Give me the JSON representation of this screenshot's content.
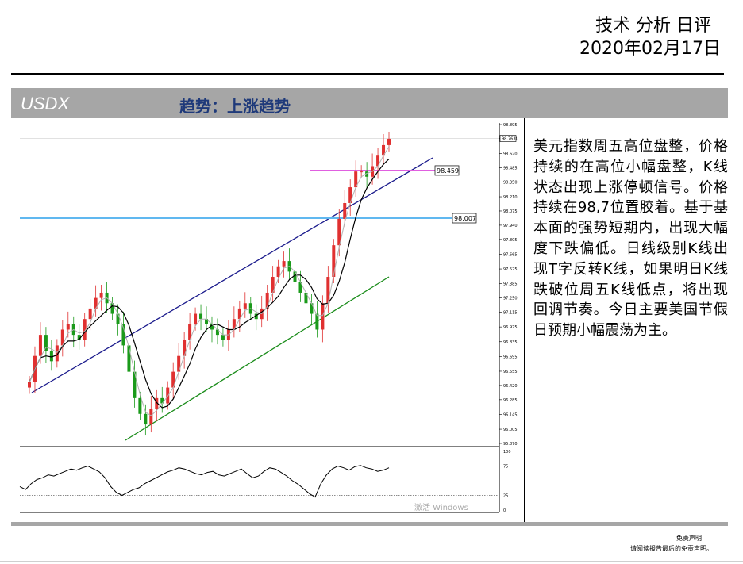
{
  "header": {
    "title": "技术 分析 日评",
    "date": "2020年02月17日"
  },
  "band": {
    "ticker": "USDX",
    "trend": "趋势：上涨趋势"
  },
  "commentary": "美元指数周五高位盘整，价格持续的在高位小幅盘整，K线状态出现上涨停顿信号。价格持续在98,7位置胶着。基于基本面的强势短期内，出现大幅度下跌偏低。日线级别K线出现T字反转K线，如果明日K线跌破位周五K线低点，将出现回调节奏。今日主要美国节假日预期小幅震荡为主。",
  "disclaimer": {
    "line1": "免责声明",
    "line2": "请阅读报告最后的免责声明。"
  },
  "watermark": "激活 Windows",
  "chart_data": {
    "type": "line",
    "title": "",
    "price_axis_ticks": [
      "98.895",
      "98.763",
      "98.620",
      "98.485",
      "98.350",
      "98.210",
      "98.075",
      "97.940",
      "97.805",
      "97.665",
      "97.525",
      "97.385",
      "97.250",
      "97.115",
      "96.975",
      "96.835",
      "96.695",
      "96.555",
      "96.420",
      "96.285",
      "96.145",
      "96.005",
      "95.870"
    ],
    "ylim": [
      95.87,
      98.895
    ],
    "last_price": "98.763",
    "horizontal_levels": [
      {
        "value": 98.459,
        "label": "98.459",
        "color": "#e060e0"
      },
      {
        "value": 98.007,
        "label": "98.007",
        "color": "#60b8f0"
      }
    ],
    "close_series": [
      96.45,
      96.7,
      96.9,
      96.75,
      96.65,
      96.8,
      96.95,
      97.0,
      96.9,
      96.85,
      97.05,
      97.15,
      97.25,
      97.3,
      97.2,
      97.1,
      97.0,
      96.8,
      96.55,
      96.3,
      96.15,
      96.05,
      96.2,
      96.3,
      96.25,
      96.4,
      96.55,
      96.7,
      96.85,
      97.0,
      97.1,
      97.05,
      97.0,
      96.95,
      96.9,
      96.85,
      96.95,
      97.05,
      97.15,
      97.2,
      97.1,
      97.05,
      97.15,
      97.3,
      97.45,
      97.55,
      97.6,
      97.5,
      97.4,
      97.3,
      97.2,
      97.1,
      96.95,
      97.2,
      97.45,
      97.75,
      98.0,
      98.15,
      98.3,
      98.45,
      98.45,
      98.4,
      98.5,
      98.6,
      98.7,
      98.76
    ],
    "oscillator": {
      "ylim": [
        0,
        100
      ],
      "tick_labels": [
        "100",
        "75",
        "25",
        "0"
      ],
      "levels": [
        75,
        25
      ],
      "values": [
        40,
        35,
        45,
        52,
        55,
        60,
        58,
        62,
        66,
        70,
        68,
        72,
        75,
        70,
        65,
        55,
        40,
        30,
        25,
        30,
        35,
        38,
        45,
        50,
        55,
        60,
        65,
        68,
        72,
        70,
        66,
        62,
        60,
        64,
        66,
        60,
        58,
        62,
        66,
        70,
        62,
        55,
        58,
        66,
        72,
        70,
        64,
        58,
        50,
        44,
        36,
        28,
        22,
        45,
        60,
        70,
        75,
        72,
        68,
        74,
        76,
        72,
        70,
        66,
        68,
        72
      ]
    }
  }
}
